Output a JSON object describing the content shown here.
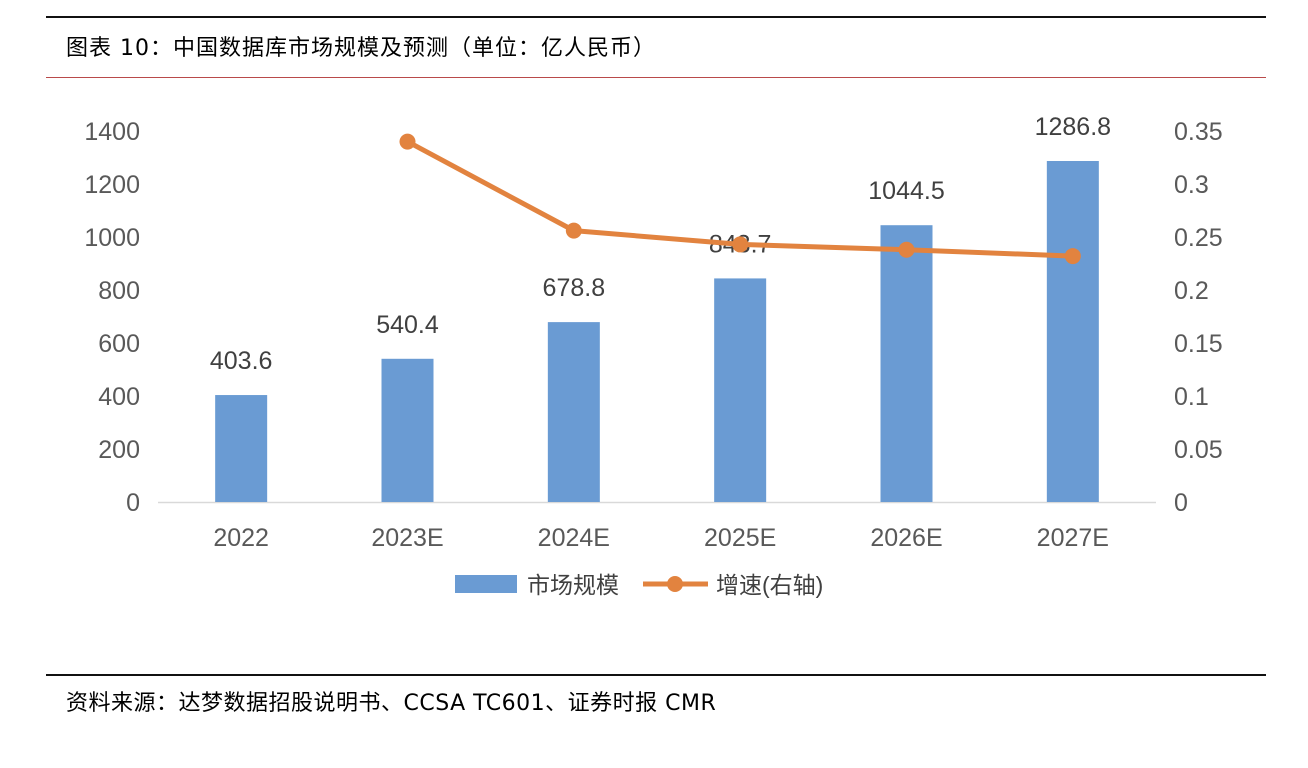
{
  "header": {
    "title": "图表 10：中国数据库市场规模及预测（单位：亿人民币）"
  },
  "footer": {
    "source": "资料来源：达梦数据招股说明书、CCSA TC601、证券时报 CMR"
  },
  "colors": {
    "bar": "#6a9bd3",
    "line": "#e2833f",
    "axis_text": "#595959",
    "axis_line": "#d9d9d9"
  },
  "chart_data": {
    "type": "bar",
    "categories": [
      "2022",
      "2023E",
      "2024E",
      "2025E",
      "2026E",
      "2027E"
    ],
    "series": [
      {
        "name": "市场规模",
        "type": "bar",
        "axis": "left",
        "values": [
          403.6,
          540.4,
          678.8,
          843.7,
          1044.5,
          1286.8
        ]
      },
      {
        "name": "增速(右轴)",
        "type": "line",
        "axis": "right",
        "values": [
          null,
          0.34,
          0.256,
          0.243,
          0.238,
          0.232
        ]
      }
    ],
    "data_labels": [
      "403.6",
      "540.4",
      "678.8",
      "843.7",
      "1044.5",
      "1286.8"
    ],
    "left_axis": {
      "min": 0,
      "max": 1400,
      "ticks": [
        "0",
        "200",
        "400",
        "600",
        "800",
        "1000",
        "1200",
        "1400"
      ]
    },
    "right_axis": {
      "min": 0,
      "max": 0.35,
      "ticks": [
        "0",
        "0.05",
        "0.1",
        "0.15",
        "0.2",
        "0.25",
        "0.3",
        "0.35"
      ]
    },
    "grid": false,
    "legend_position": "bottom"
  }
}
